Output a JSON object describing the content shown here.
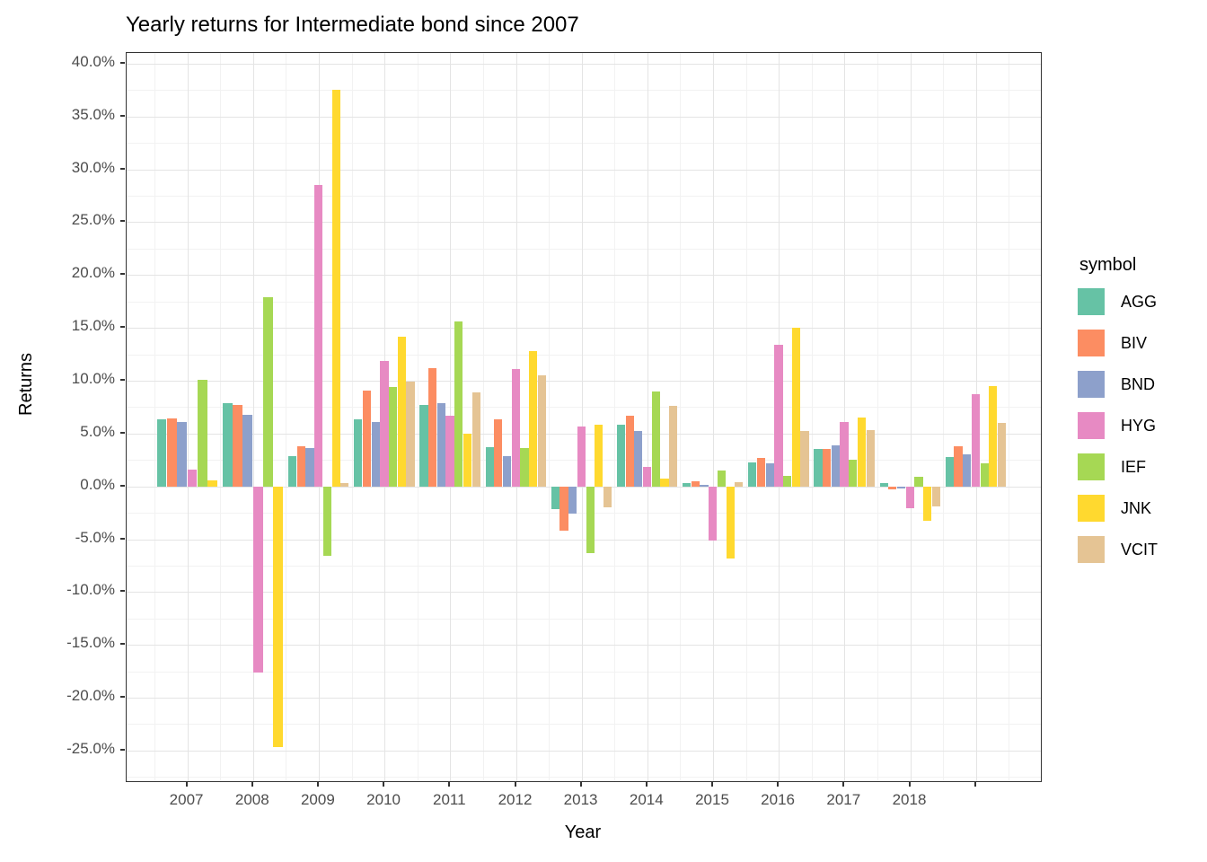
{
  "chart_data": {
    "type": "bar",
    "title": "Yearly returns for Intermediate bond since 2007",
    "xlabel": "Year",
    "ylabel": "Returns",
    "legend_title": "symbol",
    "grid": true,
    "legend_position": "right",
    "ylim": [
      -27.9,
      41.0
    ],
    "y_tick_values": [
      40,
      35,
      30,
      25,
      20,
      15,
      10,
      5,
      0,
      -5,
      -10,
      -15,
      -20,
      -25
    ],
    "y_tick_labels": [
      "40.0%",
      "35.0%",
      "30.0%",
      "25.0%",
      "20.0%",
      "15.0%",
      "10.0%",
      "5.0%",
      "0.0%",
      "-5.0%",
      "-10.0%",
      "-15.0%",
      "-20.0%",
      "-25.0%"
    ],
    "y_minor_tick_values": [
      37.5,
      32.5,
      27.5,
      22.5,
      17.5,
      12.5,
      7.5,
      2.5,
      -2.5,
      -7.5,
      -12.5,
      -17.5,
      -22.5,
      -27.5
    ],
    "categories": [
      "2007",
      "2008",
      "2009",
      "2010",
      "2011",
      "2012",
      "2013",
      "2014",
      "2015",
      "2016",
      "2017",
      "2018",
      ""
    ],
    "series": [
      {
        "name": "AGG",
        "color": "#66C2A5",
        "values": [
          6.3,
          7.9,
          2.9,
          6.3,
          7.7,
          3.7,
          -2.2,
          5.8,
          0.3,
          2.3,
          3.5,
          0.3,
          2.8
        ]
      },
      {
        "name": "BIV",
        "color": "#FC8D62",
        "values": [
          6.4,
          7.7,
          3.8,
          9.1,
          11.2,
          6.3,
          -4.2,
          6.7,
          0.5,
          2.7,
          3.5,
          -0.3,
          3.8
        ]
      },
      {
        "name": "BND",
        "color": "#8DA0CB",
        "values": [
          6.1,
          6.8,
          3.6,
          6.1,
          7.9,
          2.9,
          -2.6,
          5.2,
          0.1,
          2.2,
          3.9,
          -0.2,
          3.0
        ]
      },
      {
        "name": "HYG",
        "color": "#E78AC3",
        "values": [
          1.6,
          -17.6,
          28.5,
          11.9,
          6.7,
          11.1,
          5.7,
          1.8,
          -5.1,
          13.4,
          6.1,
          -2.1,
          8.7
        ]
      },
      {
        "name": "IEF",
        "color": "#A6D854",
        "values": [
          10.1,
          17.9,
          -6.6,
          9.4,
          15.6,
          3.6,
          -6.3,
          9.0,
          1.5,
          1.0,
          2.5,
          0.9,
          2.2
        ]
      },
      {
        "name": "JNK",
        "color": "#FFD92F",
        "values": [
          0.6,
          -24.7,
          37.5,
          14.2,
          5.0,
          12.8,
          5.8,
          0.7,
          -6.8,
          15.0,
          6.5,
          -3.3,
          9.5
        ]
      },
      {
        "name": "VCIT",
        "color": "#E5C494",
        "values": [
          null,
          null,
          0.3,
          9.9,
          8.9,
          10.5,
          -2.0,
          7.6,
          0.4,
          5.2,
          5.3,
          -1.9,
          6.0
        ]
      }
    ]
  },
  "colors": {
    "panel_border": "#333333",
    "grid_major": "#e4e4e4",
    "grid_minor": "#f2f2f2",
    "axis_text": "#4d4d4d",
    "title_text": "#000000",
    "background": "#ffffff"
  }
}
